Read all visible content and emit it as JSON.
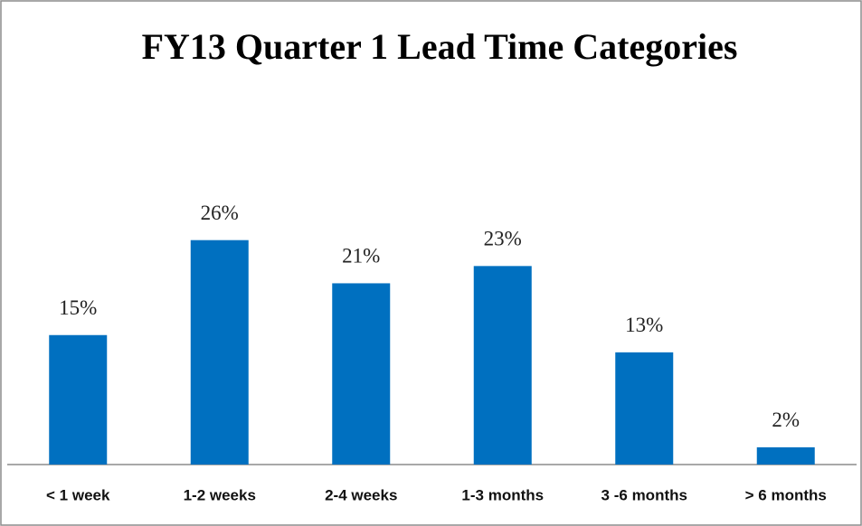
{
  "chart_data": {
    "type": "bar",
    "title": "FY13 Quarter 1 Lead Time Categories",
    "categories": [
      "< 1 week",
      "1-2 weeks",
      "2-4 weeks",
      "1-3 months",
      "3 -6 months",
      "> 6 months"
    ],
    "values": [
      15,
      26,
      21,
      23,
      13,
      2
    ],
    "value_labels": [
      "15%",
      "26%",
      "21%",
      "23%",
      "13%",
      "2%"
    ],
    "color": "#0070c0"
  }
}
